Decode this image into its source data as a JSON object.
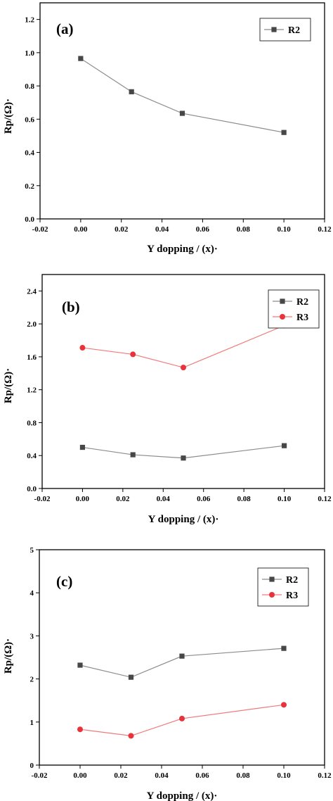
{
  "colors": {
    "R2": "#474747",
    "R3": "#e8333a",
    "axis": "#000000",
    "line_R2": "#8c8c8c",
    "line_R3": "#f07a7a"
  },
  "chart_data": [
    {
      "type": "line",
      "panel_label": "(a)",
      "xlabel": "Y dopping / (x)·",
      "ylabel": "Rp/(Ω)·",
      "xlim": [
        -0.02,
        0.12
      ],
      "ylim": [
        0.0,
        1.3
      ],
      "xticks": [
        -0.02,
        0.0,
        0.02,
        0.04,
        0.06,
        0.08,
        0.1,
        0.12
      ],
      "xtick_labels": [
        "-0.02",
        "0.00",
        "0.02",
        "0.04",
        "0.06",
        "0.08",
        "0.10",
        "0.12"
      ],
      "yticks": [
        0.0,
        0.2,
        0.4,
        0.6,
        0.8,
        1.0,
        1.2
      ],
      "ytick_labels": [
        "0.0",
        "0.2",
        "0.4",
        "0.6",
        "0.8",
        "1.0",
        "1.2"
      ],
      "legend": "top-right",
      "series": [
        {
          "name": "R2",
          "marker": "square",
          "x": [
            0.0,
            0.025,
            0.05,
            0.1
          ],
          "values": [
            0.965,
            0.765,
            0.635,
            0.52
          ]
        }
      ]
    },
    {
      "type": "line",
      "panel_label": "(b)",
      "xlabel": "Y dopping / (x)·",
      "ylabel": "Rp/(Ω)·",
      "xlim": [
        -0.02,
        0.12
      ],
      "ylim": [
        0.0,
        2.6
      ],
      "xticks": [
        -0.02,
        0.0,
        0.02,
        0.04,
        0.06,
        0.08,
        0.1,
        0.12
      ],
      "xtick_labels": [
        "-0.02",
        "0.00",
        "0.02",
        "0.04",
        "0.06",
        "0.08",
        "0.10",
        "0.12"
      ],
      "yticks": [
        0.0,
        0.4,
        0.8,
        1.2,
        1.6,
        2.0,
        2.4
      ],
      "ytick_labels": [
        "0.0",
        "0.4",
        "0.8",
        "1.2",
        "1.6",
        "2.0",
        "2.4"
      ],
      "legend": "top-right",
      "series": [
        {
          "name": "R2",
          "marker": "square",
          "x": [
            0.0,
            0.025,
            0.05,
            0.1
          ],
          "values": [
            0.5,
            0.41,
            0.37,
            0.52
          ]
        },
        {
          "name": "R3",
          "marker": "circle",
          "x": [
            0.0,
            0.025,
            0.05,
            0.1
          ],
          "values": [
            1.71,
            1.63,
            1.47,
            1.98
          ]
        }
      ]
    },
    {
      "type": "line",
      "panel_label": "(c)",
      "xlabel": "Y dopping / (x)·",
      "ylabel": "Rp/(Ω)·",
      "xlim": [
        -0.02,
        0.12
      ],
      "ylim": [
        0,
        5
      ],
      "xticks": [
        -0.02,
        0.0,
        0.02,
        0.04,
        0.06,
        0.08,
        0.1,
        0.12
      ],
      "xtick_labels": [
        "-0.02",
        "0.00",
        "0.02",
        "0.04",
        "0.06",
        "0.08",
        "0.10",
        "0.12"
      ],
      "yticks": [
        0,
        1,
        2,
        3,
        4,
        5
      ],
      "ytick_labels": [
        "0",
        "1",
        "2",
        "3",
        "4",
        "5"
      ],
      "legend": "top-right",
      "series": [
        {
          "name": "R2",
          "marker": "square",
          "x": [
            0.0,
            0.025,
            0.05,
            0.1
          ],
          "values": [
            2.32,
            2.04,
            2.53,
            2.71
          ]
        },
        {
          "name": "R3",
          "marker": "circle",
          "x": [
            0.0,
            0.025,
            0.05,
            0.1
          ],
          "values": [
            0.83,
            0.68,
            1.08,
            1.4
          ]
        }
      ]
    }
  ]
}
